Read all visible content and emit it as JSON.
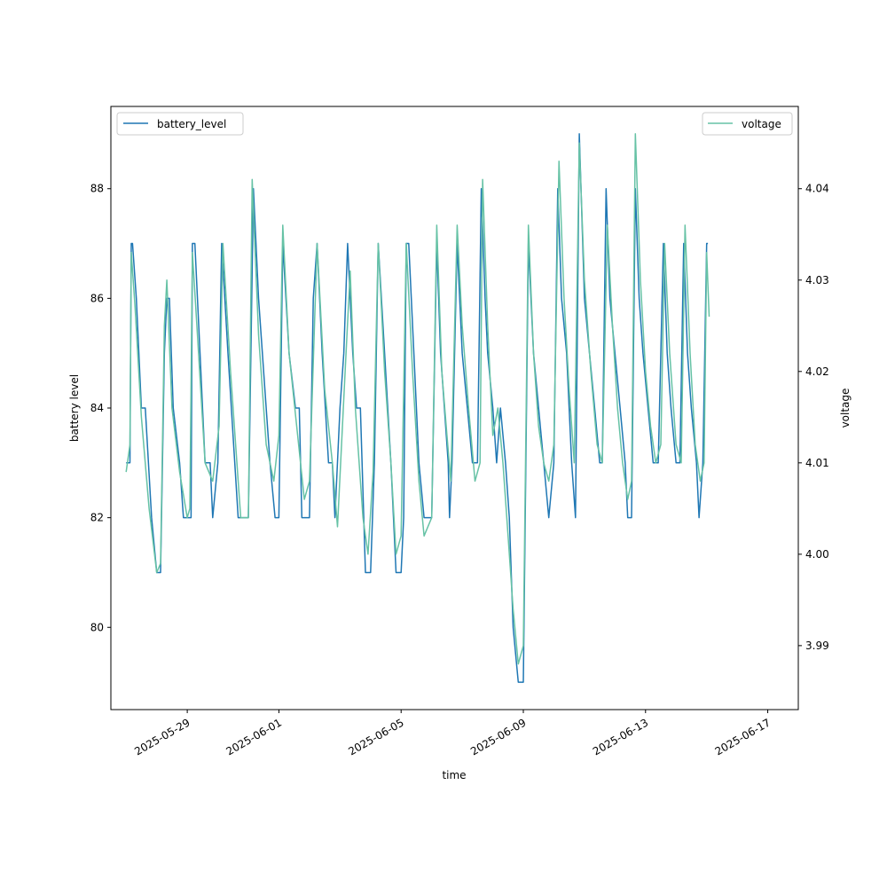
{
  "chart_data": {
    "type": "line",
    "xlabel": "time",
    "ylabel_left": "battery level",
    "ylabel_right": "voltage",
    "x_ticks": [
      "2025-05-29",
      "2025-06-01",
      "2025-06-05",
      "2025-06-09",
      "2025-06-13",
      "2025-06-17"
    ],
    "y_left_ticks": [
      "80",
      "82",
      "84",
      "86",
      "88"
    ],
    "y_right_ticks": [
      "3.99",
      "4.00",
      "4.01",
      "4.02",
      "4.03",
      "4.04"
    ],
    "x_range": [
      "2025-05-26T12:00",
      "2025-06-18T00:00"
    ],
    "y_left_range": [
      78.5,
      89.5
    ],
    "y_right_range": [
      3.983,
      4.049
    ],
    "grid": false,
    "series": [
      {
        "name": "battery_level",
        "axis": "left",
        "color": "#1f77b4",
        "legend_position": "top-left",
        "points": [
          [
            "2025-05-27T00:00",
            83
          ],
          [
            "2025-05-27T03:00",
            83
          ],
          [
            "2025-05-27T04:00",
            87
          ],
          [
            "2025-05-27T05:00",
            87
          ],
          [
            "2025-05-27T08:00",
            86
          ],
          [
            "2025-05-27T12:00",
            84
          ],
          [
            "2025-05-27T15:00",
            84
          ],
          [
            "2025-05-27T20:00",
            82
          ],
          [
            "2025-05-28T00:00",
            81
          ],
          [
            "2025-05-28T03:00",
            81
          ],
          [
            "2025-05-28T06:00",
            85
          ],
          [
            "2025-05-28T08:00",
            86
          ],
          [
            "2025-05-28T10:00",
            86
          ],
          [
            "2025-05-28T13:00",
            84
          ],
          [
            "2025-05-28T18:00",
            83
          ],
          [
            "2025-05-28T21:00",
            82
          ],
          [
            "2025-05-29T00:00",
            82
          ],
          [
            "2025-05-29T03:00",
            82
          ],
          [
            "2025-05-29T04:00",
            87
          ],
          [
            "2025-05-29T06:00",
            87
          ],
          [
            "2025-05-29T10:00",
            85
          ],
          [
            "2025-05-29T14:00",
            83
          ],
          [
            "2025-05-29T18:00",
            83
          ],
          [
            "2025-05-29T20:00",
            82
          ],
          [
            "2025-05-30T00:00",
            83
          ],
          [
            "2025-05-30T03:00",
            87
          ],
          [
            "2025-05-30T08:00",
            85
          ],
          [
            "2025-05-30T16:00",
            82
          ],
          [
            "2025-05-30T20:00",
            82
          ],
          [
            "2025-05-31T00:00",
            82
          ],
          [
            "2025-05-31T04:00",
            88
          ],
          [
            "2025-05-31T08:00",
            86
          ],
          [
            "2025-05-31T14:00",
            84
          ],
          [
            "2025-05-31T17:00",
            83
          ],
          [
            "2025-05-31T21:00",
            82
          ],
          [
            "2025-06-01T00:00",
            82
          ],
          [
            "2025-06-01T03:00",
            87
          ],
          [
            "2025-06-01T08:00",
            85
          ],
          [
            "2025-06-01T13:00",
            84
          ],
          [
            "2025-06-01T16:00",
            84
          ],
          [
            "2025-06-01T18:00",
            82
          ],
          [
            "2025-06-02T00:00",
            82
          ],
          [
            "2025-06-02T03:00",
            86
          ],
          [
            "2025-06-02T06:00",
            87
          ],
          [
            "2025-06-02T10:00",
            85
          ],
          [
            "2025-06-02T15:00",
            83
          ],
          [
            "2025-06-02T18:00",
            83
          ],
          [
            "2025-06-02T20:00",
            82
          ],
          [
            "2025-06-03T00:00",
            84
          ],
          [
            "2025-06-03T03:00",
            85
          ],
          [
            "2025-06-03T06:00",
            87
          ],
          [
            "2025-06-03T10:00",
            85
          ],
          [
            "2025-06-03T13:00",
            84
          ],
          [
            "2025-06-03T16:00",
            84
          ],
          [
            "2025-06-03T20:00",
            81
          ],
          [
            "2025-06-04T00:00",
            81
          ],
          [
            "2025-06-04T03:00",
            83
          ],
          [
            "2025-06-04T06:00",
            87
          ],
          [
            "2025-06-04T11:00",
            85
          ],
          [
            "2025-06-04T16:00",
            83
          ],
          [
            "2025-06-04T20:00",
            81
          ],
          [
            "2025-06-05T00:00",
            81
          ],
          [
            "2025-06-05T02:00",
            82
          ],
          [
            "2025-06-05T04:00",
            87
          ],
          [
            "2025-06-05T06:00",
            87
          ],
          [
            "2025-06-05T10:00",
            85
          ],
          [
            "2025-06-05T14:00",
            83
          ],
          [
            "2025-06-05T18:00",
            82
          ],
          [
            "2025-06-06T00:00",
            82
          ],
          [
            "2025-06-06T04:00",
            87
          ],
          [
            "2025-06-06T07:00",
            85
          ],
          [
            "2025-06-06T10:00",
            84
          ],
          [
            "2025-06-06T13:00",
            83
          ],
          [
            "2025-06-06T14:00",
            82
          ],
          [
            "2025-06-06T16:00",
            83
          ],
          [
            "2025-06-06T20:00",
            87
          ],
          [
            "2025-06-07T00:00",
            85
          ],
          [
            "2025-06-07T04:00",
            84
          ],
          [
            "2025-06-07T08:00",
            83
          ],
          [
            "2025-06-07T12:00",
            83
          ],
          [
            "2025-06-07T15:00",
            88
          ],
          [
            "2025-06-07T18:00",
            86
          ],
          [
            "2025-06-07T20:00",
            85
          ],
          [
            "2025-06-08T00:00",
            84
          ],
          [
            "2025-06-08T03:00",
            83
          ],
          [
            "2025-06-08T06:00",
            84
          ],
          [
            "2025-06-08T10:00",
            83
          ],
          [
            "2025-06-08T13:00",
            82
          ],
          [
            "2025-06-08T16:00",
            80
          ],
          [
            "2025-06-08T20:00",
            79
          ],
          [
            "2025-06-09T00:00",
            79
          ],
          [
            "2025-06-09T04:00",
            87
          ],
          [
            "2025-06-09T08:00",
            85
          ],
          [
            "2025-06-09T12:00",
            84
          ],
          [
            "2025-06-09T16:00",
            83
          ],
          [
            "2025-06-09T20:00",
            82
          ],
          [
            "2025-06-10T00:00",
            83
          ],
          [
            "2025-06-10T03:00",
            88
          ],
          [
            "2025-06-10T06:00",
            86
          ],
          [
            "2025-06-10T10:00",
            85
          ],
          [
            "2025-06-10T14:00",
            83
          ],
          [
            "2025-06-10T17:00",
            82
          ],
          [
            "2025-06-10T20:00",
            89
          ],
          [
            "2025-06-11T00:00",
            86
          ],
          [
            "2025-06-11T04:00",
            85
          ],
          [
            "2025-06-11T08:00",
            84
          ],
          [
            "2025-06-11T12:00",
            83
          ],
          [
            "2025-06-11T14:00",
            83
          ],
          [
            "2025-06-11T17:00",
            88
          ],
          [
            "2025-06-11T20:00",
            86
          ],
          [
            "2025-06-12T00:00",
            85
          ],
          [
            "2025-06-12T04:00",
            84
          ],
          [
            "2025-06-12T08:00",
            83
          ],
          [
            "2025-06-12T10:00",
            82
          ],
          [
            "2025-06-12T13:00",
            82
          ],
          [
            "2025-06-12T16:00",
            88
          ],
          [
            "2025-06-12T19:00",
            86
          ],
          [
            "2025-06-12T22:00",
            85
          ],
          [
            "2025-06-13T02:00",
            84
          ],
          [
            "2025-06-13T06:00",
            83
          ],
          [
            "2025-06-13T10:00",
            83
          ],
          [
            "2025-06-13T14:00",
            87
          ],
          [
            "2025-06-13T17:00",
            85
          ],
          [
            "2025-06-13T20:00",
            84
          ],
          [
            "2025-06-14T00:00",
            83
          ],
          [
            "2025-06-14T03:00",
            83
          ],
          [
            "2025-06-14T06:00",
            87
          ],
          [
            "2025-06-14T09:00",
            85
          ],
          [
            "2025-06-14T12:00",
            84
          ],
          [
            "2025-06-14T16:00",
            83
          ],
          [
            "2025-06-14T18:00",
            82
          ],
          [
            "2025-06-14T21:00",
            83
          ],
          [
            "2025-06-15T00:00",
            87
          ],
          [
            "2025-06-15T01:00",
            87
          ]
        ]
      },
      {
        "name": "voltage",
        "axis": "right",
        "color": "#66c2a5",
        "legend_position": "top-right",
        "points": [
          [
            "2025-05-27T00:00",
            4.009
          ],
          [
            "2025-05-27T03:00",
            4.012
          ],
          [
            "2025-05-27T04:00",
            4.033
          ],
          [
            "2025-05-27T07:00",
            4.027
          ],
          [
            "2025-05-27T12:00",
            4.015
          ],
          [
            "2025-05-27T18:00",
            4.005
          ],
          [
            "2025-05-28T00:00",
            3.998
          ],
          [
            "2025-05-28T03:00",
            3.999
          ],
          [
            "2025-05-28T06:00",
            4.025
          ],
          [
            "2025-05-28T08:00",
            4.03
          ],
          [
            "2025-05-28T12:00",
            4.016
          ],
          [
            "2025-05-28T18:00",
            4.009
          ],
          [
            "2025-05-29T00:00",
            4.004
          ],
          [
            "2025-05-29T02:00",
            4.005
          ],
          [
            "2025-05-29T04:00",
            4.033
          ],
          [
            "2025-05-29T08:00",
            4.024
          ],
          [
            "2025-05-29T14:00",
            4.01
          ],
          [
            "2025-05-29T20:00",
            4.008
          ],
          [
            "2025-05-30T01:00",
            4.014
          ],
          [
            "2025-05-30T04:00",
            4.034
          ],
          [
            "2025-05-30T10:00",
            4.02
          ],
          [
            "2025-05-30T18:00",
            4.004
          ],
          [
            "2025-05-31T00:00",
            4.004
          ],
          [
            "2025-05-31T03:00",
            4.041
          ],
          [
            "2025-05-31T08:00",
            4.024
          ],
          [
            "2025-05-31T14:00",
            4.012
          ],
          [
            "2025-05-31T20:00",
            4.008
          ],
          [
            "2025-06-01T00:00",
            4.013
          ],
          [
            "2025-06-01T03:00",
            4.036
          ],
          [
            "2025-06-01T08:00",
            4.022
          ],
          [
            "2025-06-01T14:00",
            4.014
          ],
          [
            "2025-06-01T20:00",
            4.006
          ],
          [
            "2025-06-02T00:00",
            4.008
          ],
          [
            "2025-06-02T06:00",
            4.034
          ],
          [
            "2025-06-02T12:00",
            4.018
          ],
          [
            "2025-06-02T18:00",
            4.01
          ],
          [
            "2025-06-02T22:00",
            4.003
          ],
          [
            "2025-06-03T04:00",
            4.02
          ],
          [
            "2025-06-03T08:00",
            4.031
          ],
          [
            "2025-06-03T12:00",
            4.016
          ],
          [
            "2025-06-03T18:00",
            4.004
          ],
          [
            "2025-06-03T22:00",
            4.0
          ],
          [
            "2025-06-04T02:00",
            4.009
          ],
          [
            "2025-06-04T06:00",
            4.034
          ],
          [
            "2025-06-04T11:00",
            4.02
          ],
          [
            "2025-06-04T16:00",
            4.01
          ],
          [
            "2025-06-04T20:00",
            4.0
          ],
          [
            "2025-06-05T00:00",
            4.002
          ],
          [
            "2025-06-05T04:00",
            4.034
          ],
          [
            "2025-06-05T09:00",
            4.02
          ],
          [
            "2025-06-05T14:00",
            4.008
          ],
          [
            "2025-06-05T18:00",
            4.002
          ],
          [
            "2025-06-06T00:00",
            4.004
          ],
          [
            "2025-06-06T04:00",
            4.036
          ],
          [
            "2025-06-06T08:00",
            4.02
          ],
          [
            "2025-06-06T12:00",
            4.013
          ],
          [
            "2025-06-06T15:00",
            4.008
          ],
          [
            "2025-06-06T20:00",
            4.036
          ],
          [
            "2025-06-07T00:00",
            4.025
          ],
          [
            "2025-06-07T05:00",
            4.016
          ],
          [
            "2025-06-07T10:00",
            4.008
          ],
          [
            "2025-06-07T14:00",
            4.01
          ],
          [
            "2025-06-07T16:00",
            4.041
          ],
          [
            "2025-06-07T20:00",
            4.025
          ],
          [
            "2025-06-08T00:00",
            4.013
          ],
          [
            "2025-06-08T04:00",
            4.016
          ],
          [
            "2025-06-08T08:00",
            4.01
          ],
          [
            "2025-06-08T12:00",
            4.002
          ],
          [
            "2025-06-08T16:00",
            3.994
          ],
          [
            "2025-06-08T20:00",
            3.988
          ],
          [
            "2025-06-09T00:00",
            3.99
          ],
          [
            "2025-06-09T04:00",
            4.036
          ],
          [
            "2025-06-09T08:00",
            4.022
          ],
          [
            "2025-06-09T12:00",
            4.014
          ],
          [
            "2025-06-09T16:00",
            4.01
          ],
          [
            "2025-06-09T20:00",
            4.008
          ],
          [
            "2025-06-10T00:00",
            4.012
          ],
          [
            "2025-06-10T04:00",
            4.043
          ],
          [
            "2025-06-10T08:00",
            4.028
          ],
          [
            "2025-06-10T12:00",
            4.018
          ],
          [
            "2025-06-10T16:00",
            4.01
          ],
          [
            "2025-06-10T20:00",
            4.045
          ],
          [
            "2025-06-11T00:00",
            4.03
          ],
          [
            "2025-06-11T05:00",
            4.02
          ],
          [
            "2025-06-11T10:00",
            4.012
          ],
          [
            "2025-06-11T14:00",
            4.01
          ],
          [
            "2025-06-11T18:00",
            4.036
          ],
          [
            "2025-06-11T22:00",
            4.025
          ],
          [
            "2025-06-12T02:00",
            4.016
          ],
          [
            "2025-06-12T06:00",
            4.01
          ],
          [
            "2025-06-12T10:00",
            4.006
          ],
          [
            "2025-06-12T13:00",
            4.008
          ],
          [
            "2025-06-12T16:00",
            4.046
          ],
          [
            "2025-06-12T20:00",
            4.03
          ],
          [
            "2025-06-13T00:00",
            4.02
          ],
          [
            "2025-06-13T04:00",
            4.014
          ],
          [
            "2025-06-13T08:00",
            4.01
          ],
          [
            "2025-06-13T12:00",
            4.012
          ],
          [
            "2025-06-13T15:00",
            4.034
          ],
          [
            "2025-06-13T19:00",
            4.022
          ],
          [
            "2025-06-14T00:00",
            4.012
          ],
          [
            "2025-06-14T04:00",
            4.01
          ],
          [
            "2025-06-14T07:00",
            4.036
          ],
          [
            "2025-06-14T11:00",
            4.022
          ],
          [
            "2025-06-14T15:00",
            4.012
          ],
          [
            "2025-06-14T19:00",
            4.008
          ],
          [
            "2025-06-14T22:00",
            4.01
          ],
          [
            "2025-06-15T00:00",
            4.033
          ],
          [
            "2025-06-15T02:00",
            4.026
          ]
        ]
      }
    ]
  }
}
